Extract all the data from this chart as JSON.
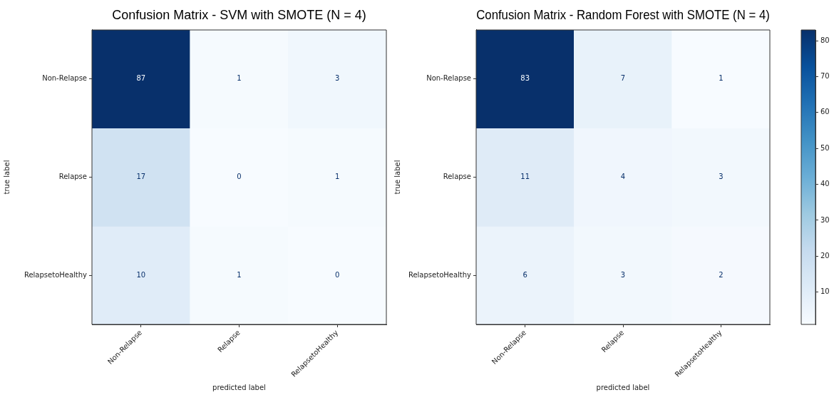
{
  "chart_data": [
    {
      "type": "heatmap",
      "title": "Confusion Matrix - SVM with SMOTE (N = 4)",
      "xlabel": "predicted label",
      "ylabel": "true label",
      "categories": [
        "Non-Relapse",
        "Relapse",
        "RelapsetoHealthy"
      ],
      "y_categories": [
        "Non-Relapse",
        "Relapse",
        "RelapsetoHealthy"
      ],
      "cells": [
        [
          87,
          1,
          3
        ],
        [
          17,
          0,
          1
        ],
        [
          10,
          1,
          0
        ]
      ],
      "data_labels": true
    },
    {
      "type": "heatmap",
      "title": "Confusion Matrix - Random Forest with SMOTE (N = 4)",
      "xlabel": "predicted label",
      "ylabel": "true label",
      "categories": [
        "Non-Relapse",
        "Relapse",
        "RelapsetoHealthy"
      ],
      "y_categories": [
        "Non-Relapse",
        "Relapse",
        "RelapsetoHealthy"
      ],
      "cells": [
        [
          83,
          7,
          1
        ],
        [
          11,
          4,
          3
        ],
        [
          6,
          3,
          2
        ]
      ],
      "data_labels": true,
      "clim": [
        1,
        83
      ],
      "cticks": [
        10,
        20,
        30,
        40,
        50,
        60,
        70,
        80
      ]
    }
  ]
}
